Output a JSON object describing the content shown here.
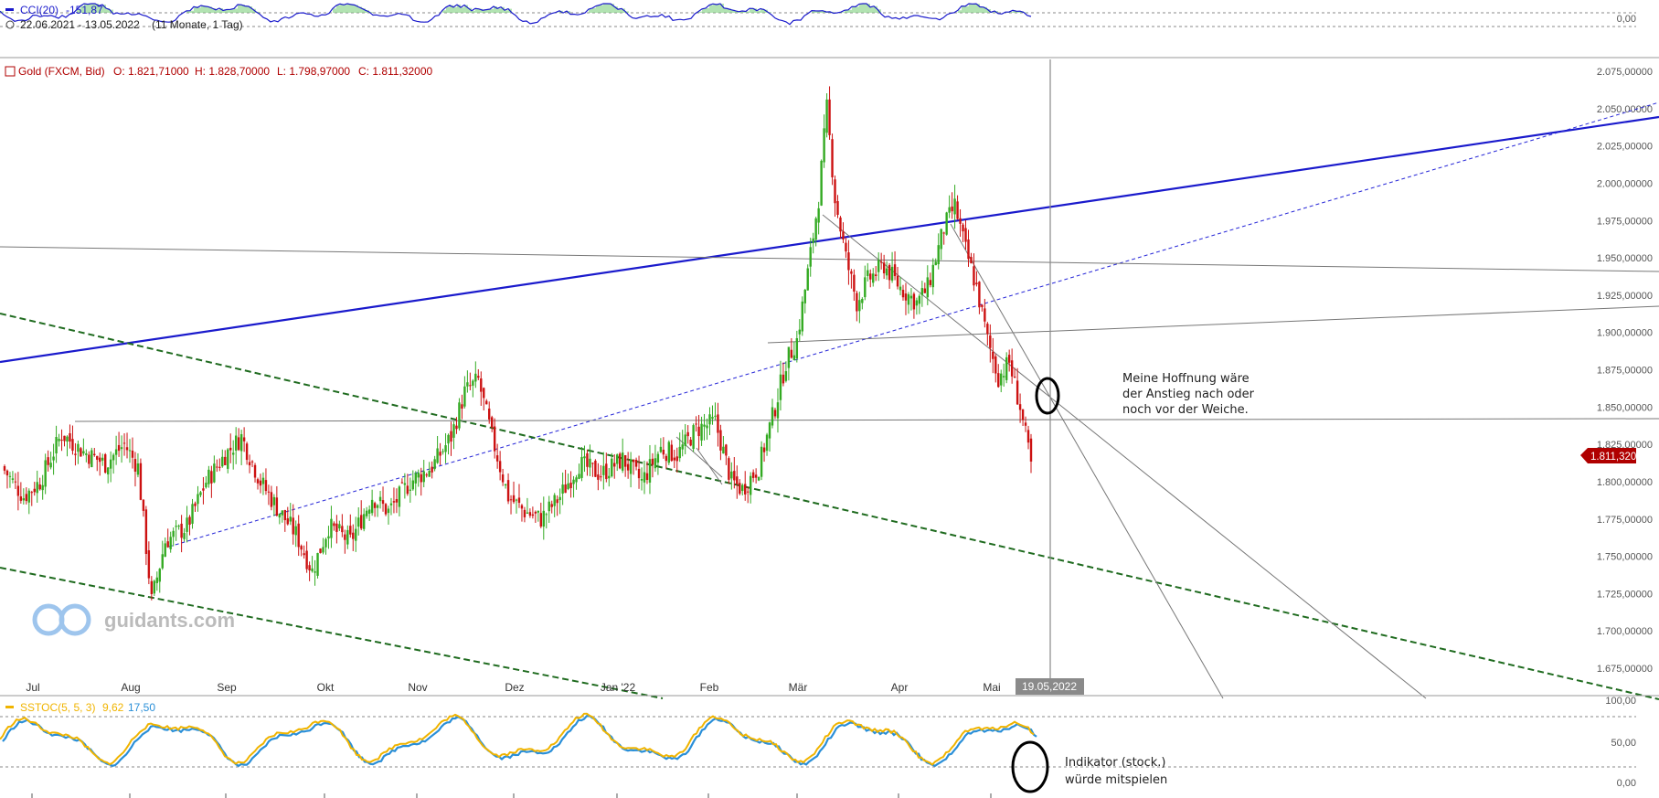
{
  "header": {
    "cci_label": "CCI(20)",
    "cci_value": "-151,87",
    "date_range": "22.06.2021 - 13.05.2022",
    "period": "(11 Monate, 1 Tag)",
    "cci_zero_label": "0,00"
  },
  "main": {
    "instrument": "Gold (FXCM, Bid)",
    "open": "O: 1.821,71000",
    "high": "H: 1.828,70000",
    "low": "L: 1.798,97000",
    "close": "C: 1.811,32000",
    "last_price_label": "1.811,32000",
    "crosshair_date": "19.05,2022",
    "watermark": "guidants.com"
  },
  "annotations": {
    "hope_line1": "Meine Hoffnung wäre",
    "hope_line2": "der Anstieg nach oder",
    "hope_line3": "noch vor der Weiche.",
    "stoch_line1": "Indikator (stock.)",
    "stoch_line2": "würde mitspielen"
  },
  "stoch": {
    "label": "SSTOC(5, 5, 3)",
    "k_value": "9,62",
    "d_value": "17,50",
    "tick_100": "100,00",
    "tick_50": "50,00",
    "tick_0": "0,00"
  },
  "colors": {
    "up": "#33aa22",
    "down": "#cc1111",
    "blue_line": "#1a1acc",
    "green_dash": "#1f6b1f",
    "stoch_k": "#f0b400",
    "stoch_d": "#2a8fd8",
    "label_red": "#b00000"
  },
  "chart_data": {
    "type": "candlestick",
    "y_ticks": [
      "2.075,00000",
      "2.050,00000",
      "2.025,00000",
      "2.000,00000",
      "1.975,00000",
      "1.950,00000",
      "1.925,00000",
      "1.900,00000",
      "1.875,00000",
      "1.850,00000",
      "1.825,00000",
      "1.800,00000",
      "1.775,00000",
      "1.750,00000",
      "1.725,00000",
      "1.700,00000",
      "1.675,00000"
    ],
    "y_tick_values": [
      2075,
      2050,
      2025,
      2000,
      1975,
      1950,
      1925,
      1900,
      1875,
      1850,
      1825,
      1800,
      1775,
      1750,
      1725,
      1700,
      1675
    ],
    "months": [
      "Jul",
      "Aug",
      "Sep",
      "Okt",
      "Nov",
      "Dez",
      "Jan '22",
      "Feb",
      "Mär",
      "Apr",
      "Mai"
    ],
    "last_close": 1811.32,
    "price_path": [
      [
        0,
        1810
      ],
      [
        8,
        1790
      ],
      [
        14,
        1800
      ],
      [
        22,
        1832
      ],
      [
        30,
        1820
      ],
      [
        38,
        1812
      ],
      [
        45,
        1825
      ],
      [
        50,
        1810
      ],
      [
        55,
        1720
      ],
      [
        60,
        1760
      ],
      [
        68,
        1770
      ],
      [
        75,
        1800
      ],
      [
        82,
        1818
      ],
      [
        88,
        1830
      ],
      [
        95,
        1800
      ],
      [
        102,
        1780
      ],
      [
        108,
        1765
      ],
      [
        114,
        1740
      ],
      [
        120,
        1770
      ],
      [
        128,
        1760
      ],
      [
        136,
        1790
      ],
      [
        142,
        1780
      ],
      [
        150,
        1800
      ],
      [
        158,
        1810
      ],
      [
        165,
        1830
      ],
      [
        170,
        1860
      ],
      [
        175,
        1868
      ],
      [
        180,
        1830
      ],
      [
        186,
        1790
      ],
      [
        192,
        1780
      ],
      [
        198,
        1775
      ],
      [
        205,
        1790
      ],
      [
        212,
        1812
      ],
      [
        220,
        1805
      ],
      [
        228,
        1815
      ],
      [
        235,
        1800
      ],
      [
        242,
        1822
      ],
      [
        248,
        1818
      ],
      [
        255,
        1835
      ],
      [
        262,
        1840
      ],
      [
        268,
        1800
      ],
      [
        272,
        1795
      ],
      [
        278,
        1810
      ],
      [
        284,
        1850
      ],
      [
        288,
        1880
      ],
      [
        292,
        1895
      ],
      [
        296,
        1940
      ],
      [
        300,
        1990
      ],
      [
        303,
        2050
      ],
      [
        306,
        1990
      ],
      [
        310,
        1950
      ],
      [
        314,
        1920
      ],
      [
        318,
        1935
      ],
      [
        324,
        1945
      ],
      [
        330,
        1930
      ],
      [
        336,
        1920
      ],
      [
        340,
        1930
      ],
      [
        346,
        1970
      ],
      [
        350,
        1985
      ],
      [
        354,
        1955
      ],
      [
        358,
        1930
      ],
      [
        362,
        1895
      ],
      [
        366,
        1870
      ],
      [
        370,
        1880
      ],
      [
        374,
        1850
      ],
      [
        378,
        1811
      ]
    ]
  }
}
